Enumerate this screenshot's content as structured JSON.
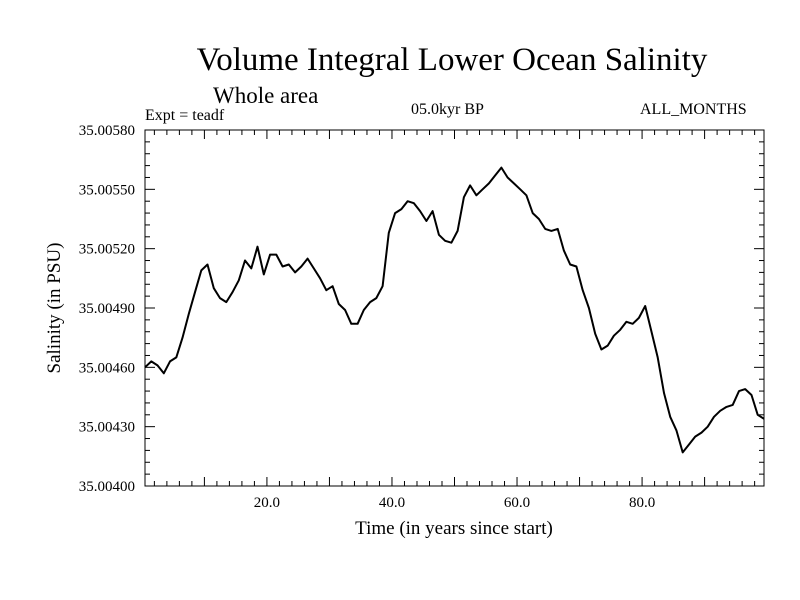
{
  "chart_data": {
    "type": "line",
    "title": "Volume Integral Lower Ocean Salinity",
    "subtitle": "Whole area",
    "annotations": {
      "left": "Expt = teadf",
      "center": "05.0kyr BP",
      "right": "ALL_MONTHS"
    },
    "xlabel": "Time (in years since start)",
    "ylabel": "Salinity (in PSU)",
    "xlim": [
      0.5,
      99.5
    ],
    "ylim": [
      35.004,
      35.0058
    ],
    "xticks": [
      {
        "value": 20,
        "label": "20.0"
      },
      {
        "value": 40,
        "label": "40.0"
      },
      {
        "value": 60,
        "label": "60.0"
      },
      {
        "value": 80,
        "label": "80.0"
      }
    ],
    "yticks": [
      {
        "value": 35.004,
        "label": "35.00400"
      },
      {
        "value": 35.0043,
        "label": "35.00430"
      },
      {
        "value": 35.0046,
        "label": "35.00460"
      },
      {
        "value": 35.0049,
        "label": "35.00490"
      },
      {
        "value": 35.0052,
        "label": "35.00520"
      },
      {
        "value": 35.0055,
        "label": "35.00550"
      },
      {
        "value": 35.0058,
        "label": "35.00580"
      }
    ],
    "series": [
      {
        "name": "teadf",
        "x": [
          0.5,
          1.5,
          2.5,
          3.5,
          4.5,
          5.5,
          6.5,
          7.5,
          8.5,
          9.5,
          10.5,
          11.5,
          12.5,
          13.5,
          14.5,
          15.5,
          16.5,
          17.5,
          18.5,
          19.5,
          20.5,
          21.5,
          22.5,
          23.5,
          24.5,
          25.5,
          26.5,
          27.5,
          28.5,
          29.5,
          30.5,
          31.5,
          32.5,
          33.5,
          34.5,
          35.5,
          36.5,
          37.5,
          38.5,
          39.5,
          40.5,
          41.5,
          42.5,
          43.5,
          44.5,
          45.5,
          46.5,
          47.5,
          48.5,
          49.5,
          50.5,
          51.5,
          52.5,
          53.5,
          54.5,
          55.5,
          56.5,
          57.5,
          58.5,
          59.5,
          60.5,
          61.5,
          62.5,
          63.5,
          64.5,
          65.5,
          66.5,
          67.5,
          68.5,
          69.5,
          70.5,
          71.5,
          72.5,
          73.5,
          74.5,
          75.5,
          76.5,
          77.5,
          78.5,
          79.5,
          80.5,
          81.5,
          82.5,
          83.5,
          84.5,
          85.5,
          86.5,
          87.5,
          88.5,
          89.5,
          90.5,
          91.5,
          92.5,
          93.5,
          94.5,
          95.5,
          96.5,
          97.5,
          98.5,
          99.5
        ],
        "values": [
          35.0046,
          35.00463,
          35.00461,
          35.00457,
          35.00463,
          35.00465,
          35.00475,
          35.00487,
          35.00498,
          35.00509,
          35.00512,
          35.005,
          35.00495,
          35.00493,
          35.00498,
          35.00504,
          35.00514,
          35.0051,
          35.00521,
          35.00507,
          35.00517,
          35.00517,
          35.00511,
          35.00512,
          35.00508,
          35.00511,
          35.00515,
          35.0051,
          35.00505,
          35.00499,
          35.00501,
          35.00492,
          35.00489,
          35.00482,
          35.00482,
          35.00489,
          35.00493,
          35.00495,
          35.00501,
          35.00528,
          35.00538,
          35.0054,
          35.00544,
          35.00543,
          35.00539,
          35.00534,
          35.00539,
          35.00527,
          35.00524,
          35.00523,
          35.00529,
          35.00546,
          35.00552,
          35.00547,
          35.0055,
          35.00553,
          35.00557,
          35.00561,
          35.00556,
          35.00553,
          35.0055,
          35.00547,
          35.00538,
          35.00535,
          35.0053,
          35.00529,
          35.0053,
          35.00519,
          35.00512,
          35.00511,
          35.00499,
          35.0049,
          35.00477,
          35.00469,
          35.00471,
          35.00476,
          35.00479,
          35.00483,
          35.00482,
          35.00485,
          35.00491,
          35.00478,
          35.00465,
          35.00447,
          35.00435,
          35.00428,
          35.00417,
          35.00421,
          35.00425,
          35.00427,
          35.0043,
          35.00435,
          35.00438,
          35.0044,
          35.00441,
          35.00448,
          35.00449,
          35.00446,
          35.00436,
          35.00434
        ]
      }
    ]
  }
}
